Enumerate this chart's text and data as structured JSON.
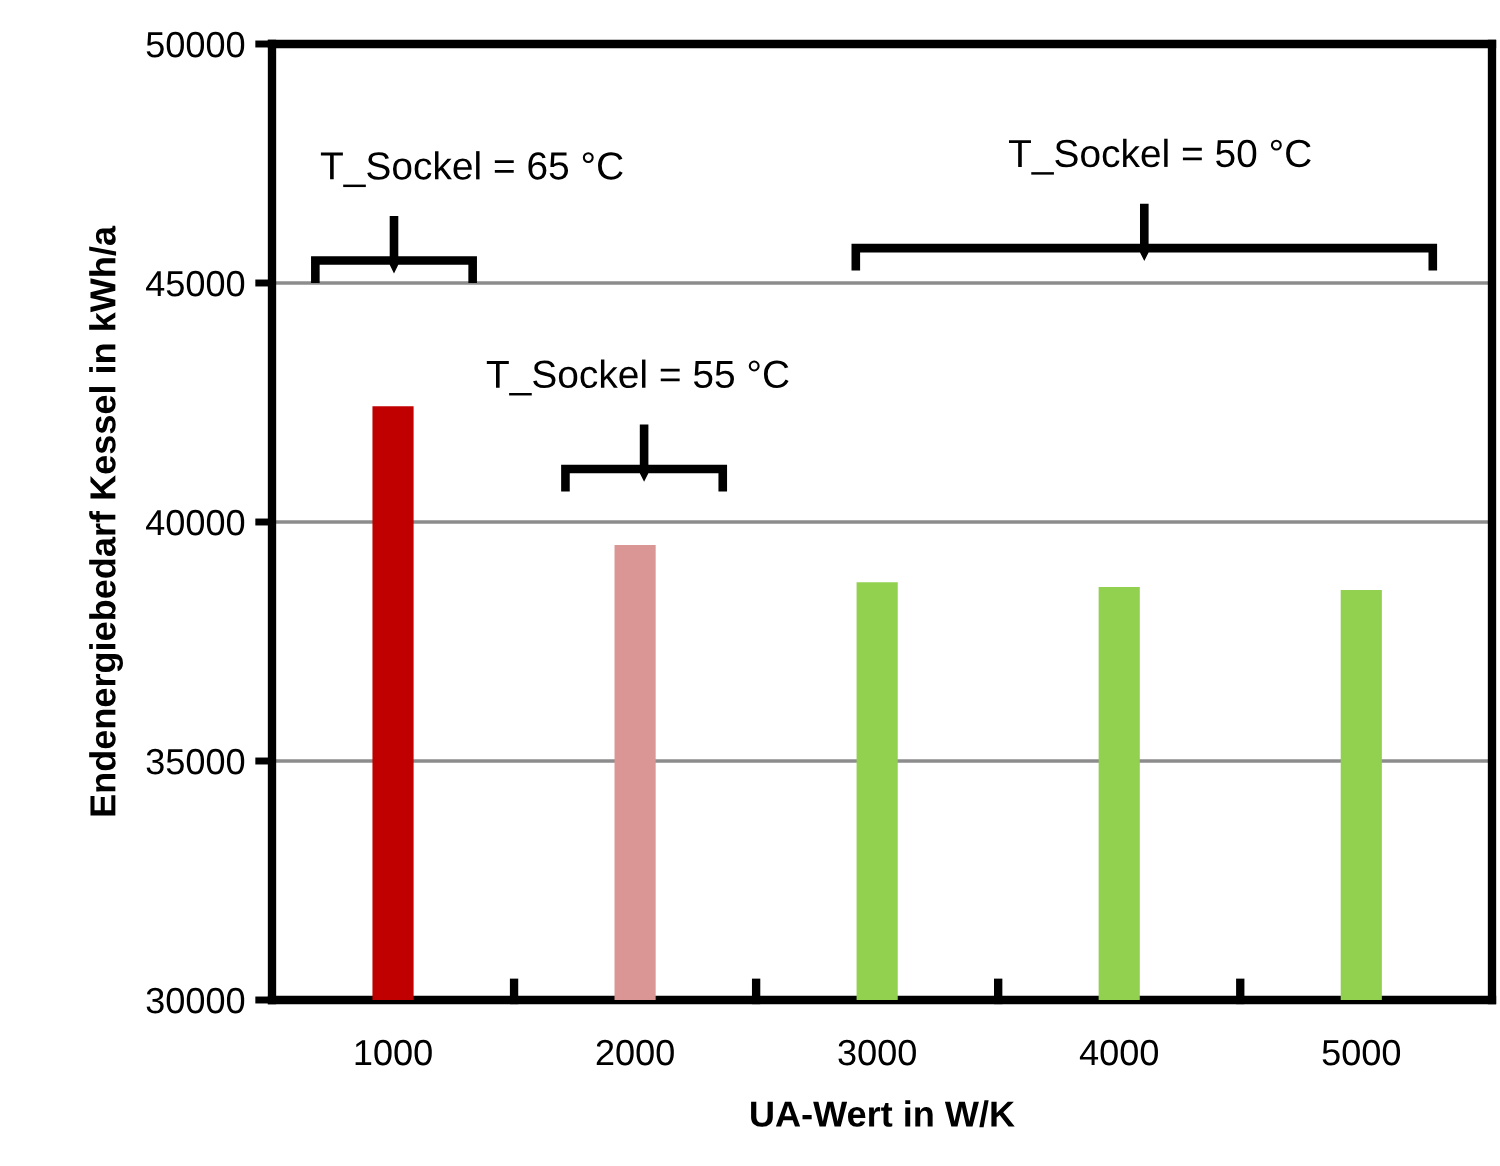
{
  "chart_data": {
    "type": "bar",
    "xlabel": "UA-Wert in W/K",
    "ylabel": "Endenergiebedarf Kessel in kWh/a",
    "categories": [
      "1000",
      "2000",
      "3000",
      "4000",
      "5000"
    ],
    "values": [
      42420,
      39520,
      38740,
      38640,
      38580
    ],
    "colors": [
      "#c00000",
      "#d99694",
      "#92d050",
      "#92d050",
      "#92d050"
    ],
    "ylim": [
      30000,
      50000
    ],
    "yticks": [
      30000,
      35000,
      40000,
      45000,
      50000
    ],
    "grid": "y",
    "annotations": [
      "T_Sockel = 65 °C",
      "T_Sockel = 55 °C",
      "T_Sockel = 50 °C"
    ]
  }
}
